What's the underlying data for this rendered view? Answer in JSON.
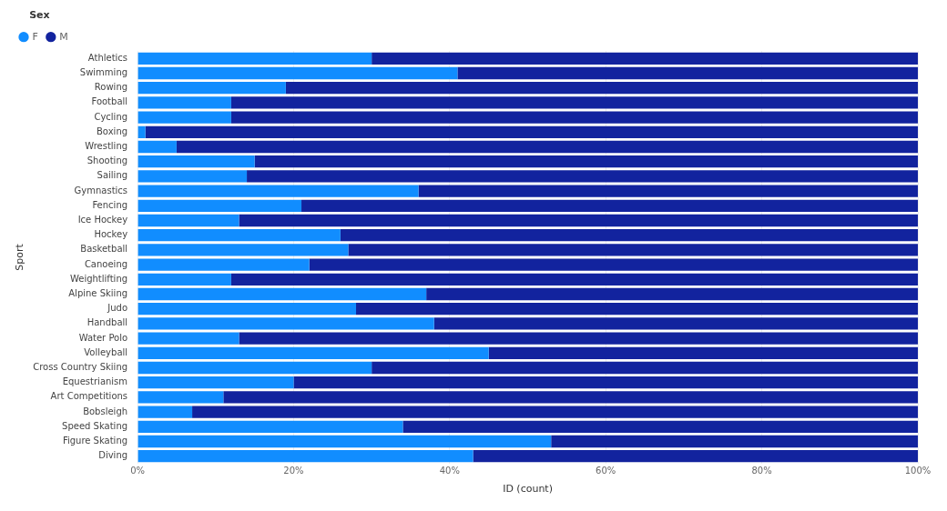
{
  "chart_data": {
    "type": "bar",
    "orientation": "horizontal",
    "stacked": true,
    "xlabel": "ID (count)",
    "ylabel": "Sport",
    "legend_title": "Sex",
    "legend": "top left",
    "grid": "x",
    "categories": [
      "Athletics",
      "Swimming",
      "Rowing",
      "Football",
      "Cycling",
      "Boxing",
      "Wrestling",
      "Shooting",
      "Sailing",
      "Gymnastics",
      "Fencing",
      "Ice Hockey",
      "Hockey",
      "Basketball",
      "Canoeing",
      "Weightlifting",
      "Alpine Skiing",
      "Judo",
      "Handball",
      "Water Polo",
      "Volleyball",
      "Cross Country Skiing",
      "Equestrianism",
      "Art Competitions",
      "Bobsleigh",
      "Speed Skating",
      "Figure Skating",
      "Diving"
    ],
    "series": [
      {
        "name": "F",
        "color": "#118dff",
        "values": [
          30,
          41,
          19,
          12,
          12,
          1,
          5,
          15,
          14,
          36,
          21,
          13,
          26,
          27,
          22,
          12,
          37,
          28,
          38,
          13,
          45,
          30,
          20,
          11,
          7,
          34,
          53,
          43
        ]
      },
      {
        "name": "M",
        "color": "#12239e",
        "values": [
          70,
          59,
          81,
          88,
          88,
          99,
          95,
          85,
          86,
          64,
          79,
          87,
          74,
          73,
          78,
          88,
          63,
          72,
          62,
          87,
          55,
          70,
          80,
          89,
          93,
          66,
          47,
          57
        ]
      }
    ],
    "xlim": [
      0,
      100
    ],
    "xticks": [
      {
        "value": 0,
        "label": "0%"
      },
      {
        "value": 20,
        "label": "20%"
      },
      {
        "value": 40,
        "label": "40%"
      },
      {
        "value": 60,
        "label": "60%"
      },
      {
        "value": 80,
        "label": "80%"
      },
      {
        "value": 100,
        "label": "100%"
      }
    ]
  }
}
